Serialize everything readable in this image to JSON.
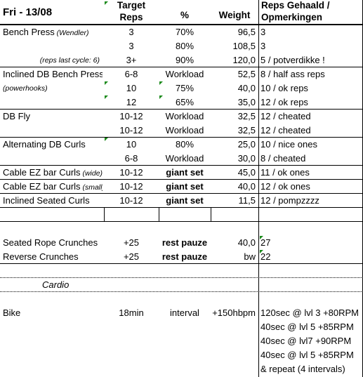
{
  "header": {
    "day": "Fri - 13/08",
    "target_line1": "Target",
    "target_line2": "Reps",
    "percent": "%",
    "weight": "Weight",
    "reps_line1": "Reps Gehaald /",
    "reps_line2": "Opmerkingen"
  },
  "rows": [
    {
      "name": "Bench Press",
      "note": "(Wendler)",
      "reps": "3",
      "pct": "70%",
      "weight": "96,5",
      "result": "3"
    },
    {
      "name": "",
      "note": "",
      "reps": "3",
      "pct": "80%",
      "weight": "108,5",
      "result": "3"
    },
    {
      "name": "",
      "note": "(reps last cycle: 6)",
      "reps": "3+",
      "pct": "90%",
      "weight": "120,0",
      "result": "5 / potverdikke !"
    },
    {
      "name": "Inclined DB Bench Press",
      "note": "",
      "reps": "6-8",
      "pct": "Workload",
      "weight": "52,5",
      "result": "8 / half ass reps"
    },
    {
      "name": "",
      "note": "(powerhooks)",
      "reps": "10",
      "pct": "75%",
      "weight": "40,0",
      "result": "10 / ok reps"
    },
    {
      "name": "",
      "note": "",
      "reps": "12",
      "pct": "65%",
      "weight": "35,0",
      "result": "12 / ok reps"
    },
    {
      "name": "DB Fly",
      "note": "",
      "reps": "10-12",
      "pct": "Workload",
      "weight": "32,5",
      "result": "12 / cheated"
    },
    {
      "name": "",
      "note": "",
      "reps": "10-12",
      "pct": "Workload",
      "weight": "32,5",
      "result": "12 / cheated"
    },
    {
      "name": "Alternating DB Curls",
      "note": "",
      "reps": "10",
      "pct": "80%",
      "weight": "25,0",
      "result": "10 / nice ones"
    },
    {
      "name": "",
      "note": "",
      "reps": "6-8",
      "pct": "Workload",
      "weight": "30,0",
      "result": "8 / cheated"
    },
    {
      "name": "Cable EZ bar Curls",
      "note": "(wide)",
      "reps": "10-12",
      "pct": "giant set",
      "weight": "45,0",
      "result": "11 / ok ones"
    },
    {
      "name": "Cable EZ bar Curls",
      "note": "(small)",
      "reps": "10-12",
      "pct": "giant set",
      "weight": "40,0",
      "result": "12 / ok ones"
    },
    {
      "name": "Inclined Seated Curls",
      "note": "",
      "reps": "10-12",
      "pct": "giant set",
      "weight": "11,5",
      "result": "12 / pompzzzz"
    },
    {
      "name": "",
      "note": "",
      "reps": "",
      "pct": "",
      "weight": "",
      "result": ""
    },
    {
      "name": "",
      "note": "",
      "reps": "",
      "pct": "",
      "weight": "",
      "result": ""
    },
    {
      "name": "Seated Rope Crunches",
      "note": "",
      "reps": "+25",
      "pct": "rest pauze",
      "weight": "40,0",
      "result": "27"
    },
    {
      "name": "Reverse Crunches",
      "note": "",
      "reps": "+25",
      "pct": "rest pauze",
      "weight": "bw",
      "result": "22"
    },
    {
      "name": "",
      "note": "",
      "reps": "",
      "pct": "",
      "weight": "",
      "result": ""
    },
    {
      "name": "Cardio",
      "note": "",
      "reps": "",
      "pct": "",
      "weight": "",
      "result": ""
    },
    {
      "name": "",
      "note": "",
      "reps": "",
      "pct": "",
      "weight": "",
      "result": ""
    },
    {
      "name": "Bike",
      "note": "",
      "reps": "18min",
      "pct": "interval",
      "weight": "+150hbpm",
      "result": "120sec @ lvl 3 +80RPM"
    },
    {
      "name": "",
      "note": "",
      "reps": "",
      "pct": "",
      "weight": "",
      "result": "40sec @ lvl 5 +85RPM"
    },
    {
      "name": "",
      "note": "",
      "reps": "",
      "pct": "",
      "weight": "",
      "result": "40sec @ lvl7 +90RPM"
    },
    {
      "name": "",
      "note": "",
      "reps": "",
      "pct": "",
      "weight": "",
      "result": "40sec @ lvl 5 +85RPM"
    },
    {
      "name": "",
      "note": "",
      "reps": "",
      "pct": "",
      "weight": "",
      "result": "& repeat (4 intervals)"
    }
  ],
  "colors": {
    "grid": "#000000",
    "comment_marker": "#1a8a1a"
  }
}
